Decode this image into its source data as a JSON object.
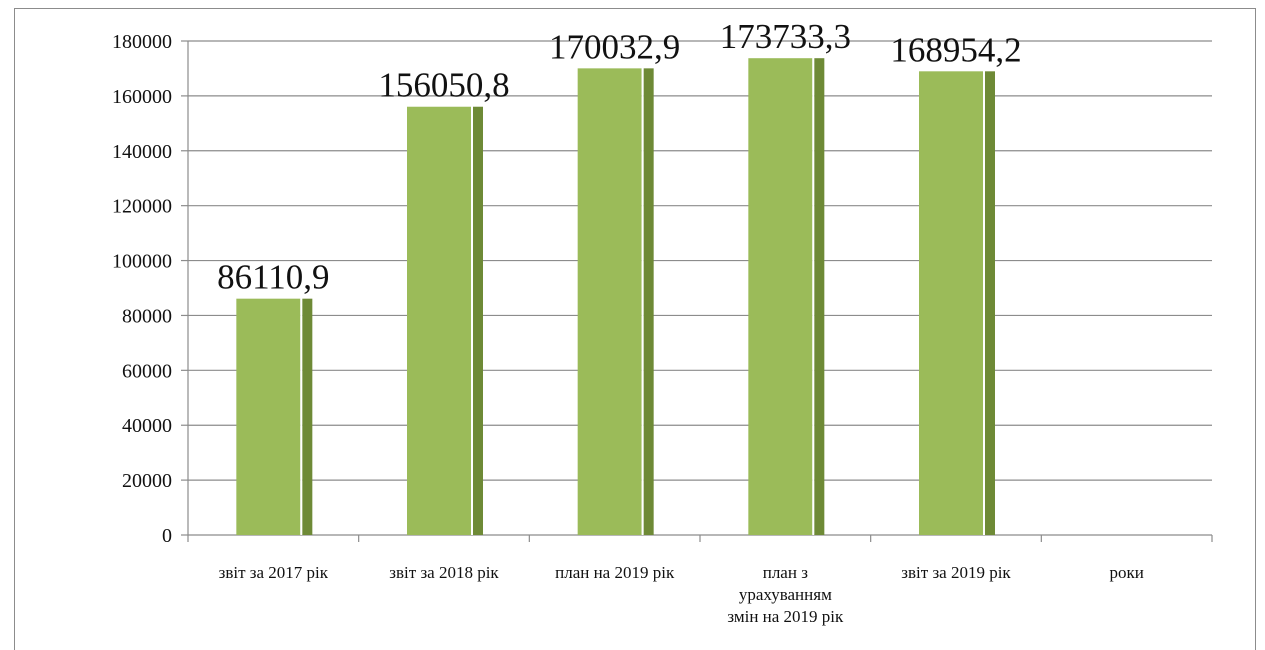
{
  "chart_data": {
    "type": "bar",
    "title": "",
    "xlabel": "",
    "ylabel": "",
    "categories": [
      [
        "звіт за 2017 рік"
      ],
      [
        "звіт за 2018 рік"
      ],
      [
        "план на 2019 рік"
      ],
      [
        "план з",
        "урахуванням",
        "змін на  2019 рік"
      ],
      [
        "звіт за 2019 рік"
      ],
      [
        "роки"
      ]
    ],
    "values": [
      86110.9,
      156050.8,
      170032.9,
      173733.3,
      168954.2,
      null
    ],
    "data_labels": [
      "86110,9",
      "156050,8",
      "170032,9",
      "173733,3",
      "168954,2",
      ""
    ],
    "ylim": [
      0,
      180000
    ],
    "y_ticks": [
      0,
      20000,
      40000,
      60000,
      80000,
      100000,
      120000,
      140000,
      160000,
      180000
    ],
    "grid": true,
    "legend": "none",
    "colors": {
      "bar_front": "#9bbb59",
      "bar_side": "#6e8a36",
      "gridline": "#8c8c8c",
      "axis": "#8c8c8c"
    }
  }
}
